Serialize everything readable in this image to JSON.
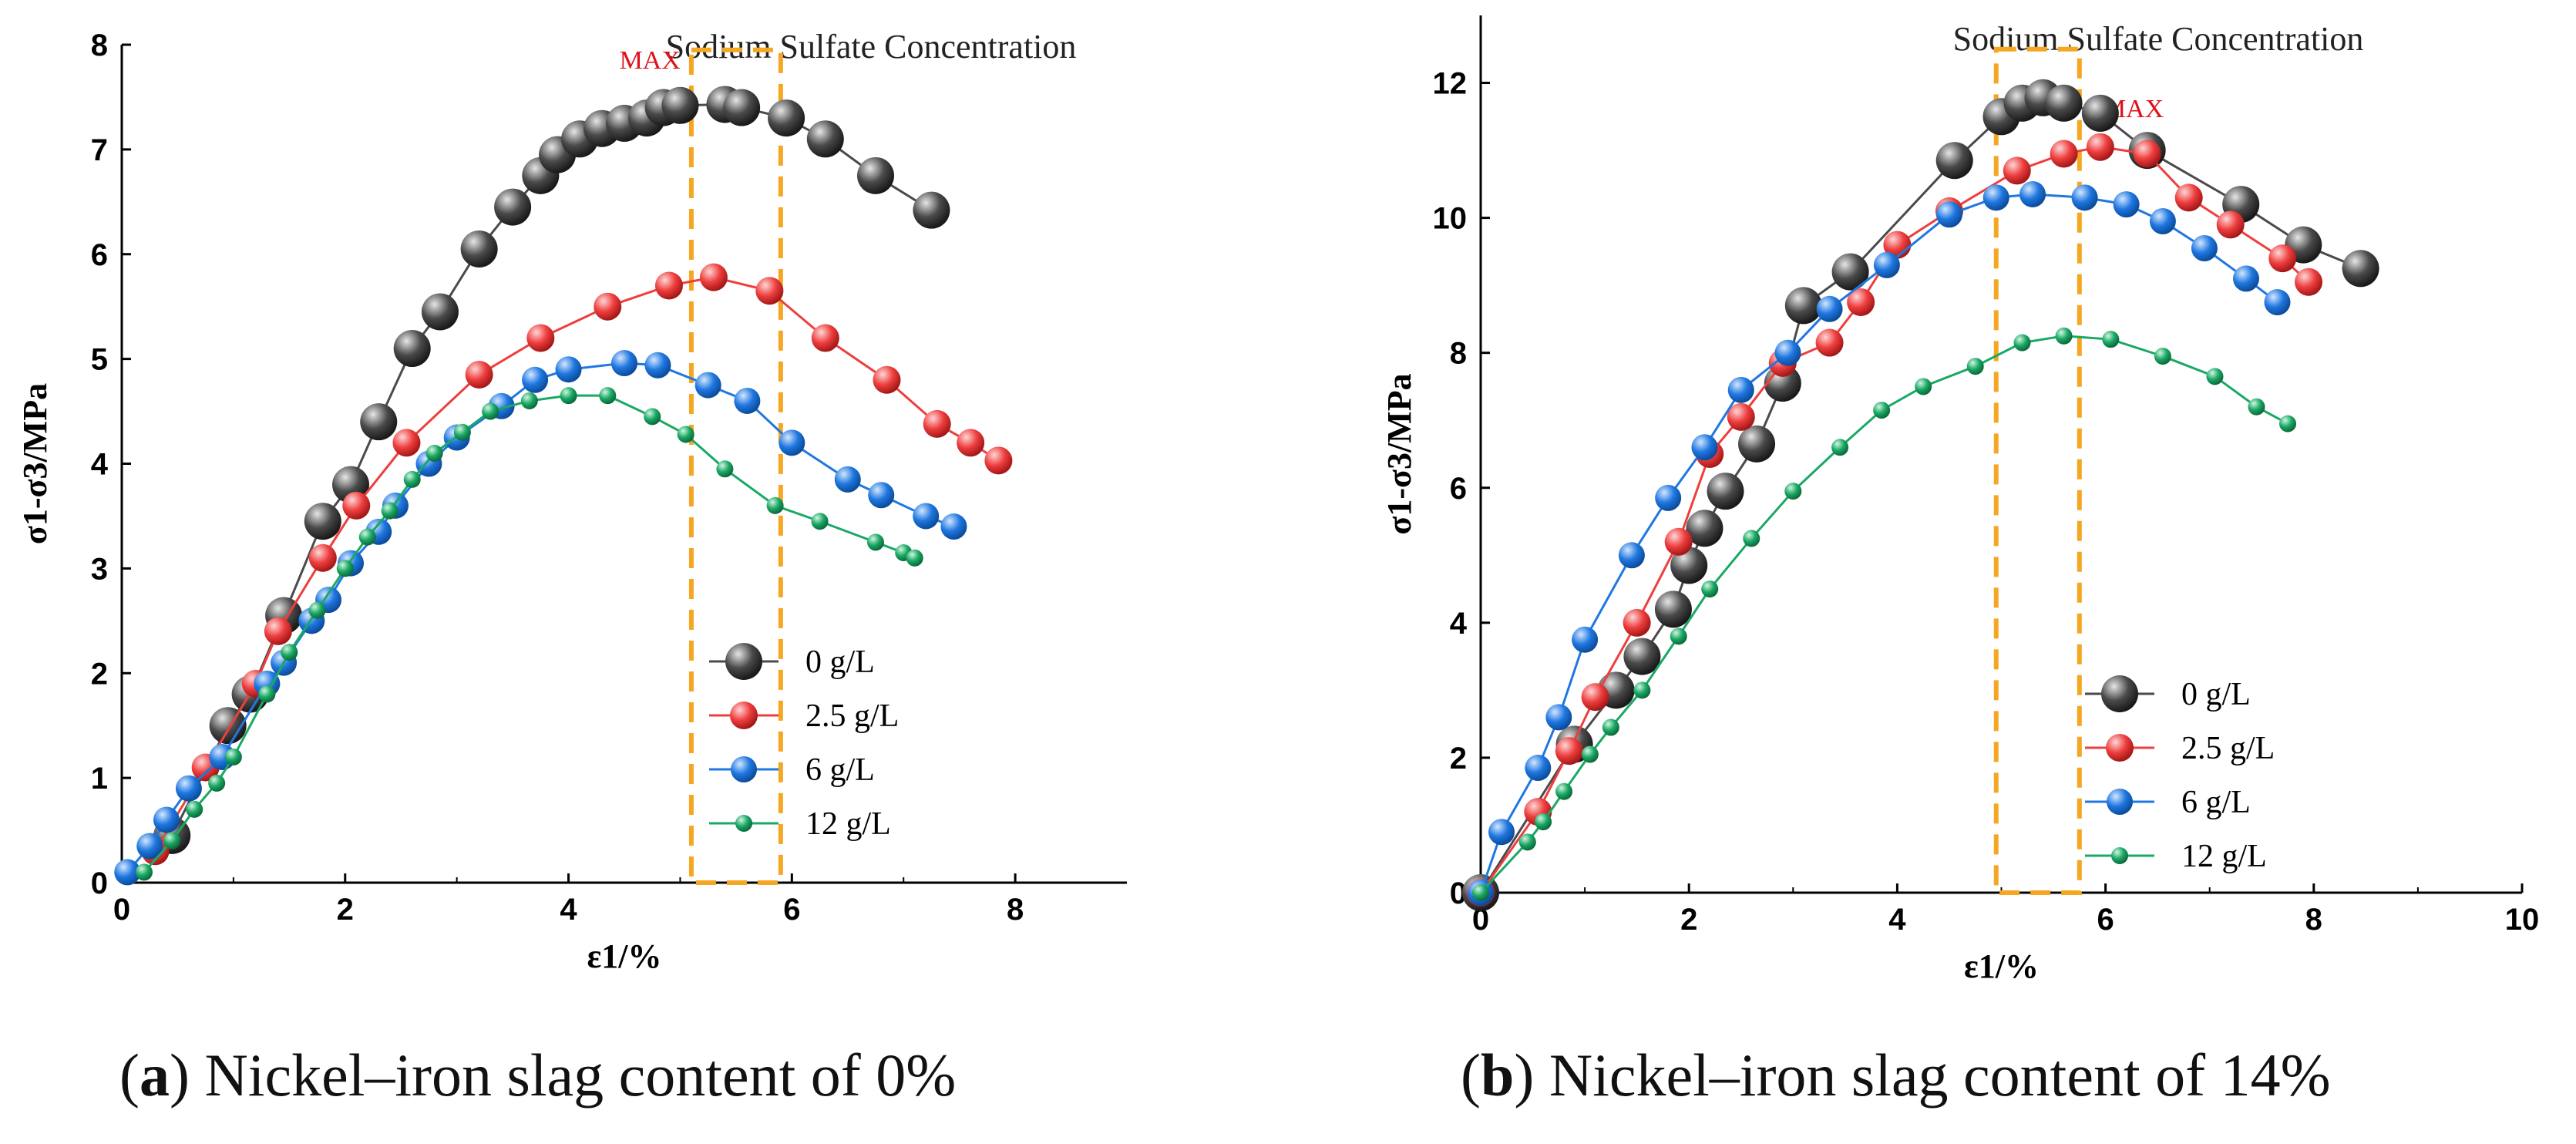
{
  "captions": [
    {
      "tag": "a",
      "text": "Nickel–iron slag content of 0%"
    },
    {
      "tag": "b",
      "text": "Nickel–iron slag content of 14%"
    }
  ],
  "chart_data": [
    {
      "id": "a",
      "type": "line",
      "title": "Sodium Sulfate Concentration",
      "xlabel": "ε1/%",
      "ylabel": "σ1-σ3/MPa",
      "xlim": [
        0,
        9
      ],
      "ylim": [
        0,
        8
      ],
      "xticks": [
        "0",
        "2",
        "4",
        "6",
        "8"
      ],
      "yticks": [
        "0",
        "1",
        "2",
        "3",
        "4",
        "5",
        "6",
        "7",
        "8"
      ],
      "annotation": {
        "text": "MAX",
        "x_range": [
          5.1,
          5.9
        ],
        "y_range": [
          0,
          7.95
        ]
      },
      "legend_position": "lower-right",
      "series": [
        {
          "name": "0 g/L",
          "color": "#4a4a4a",
          "x": [
            0.45,
            0.95,
            1.15,
            1.45,
            1.8,
            2.05,
            2.3,
            2.6,
            2.85,
            3.2,
            3.5,
            3.75,
            3.9,
            4.1,
            4.3,
            4.5,
            4.7,
            4.85,
            5.0,
            5.4,
            5.55,
            5.95,
            6.3,
            6.75,
            7.25
          ],
          "y": [
            0.45,
            1.5,
            1.8,
            2.55,
            3.45,
            3.8,
            4.4,
            5.1,
            5.45,
            6.05,
            6.45,
            6.75,
            6.95,
            7.1,
            7.2,
            7.25,
            7.3,
            7.4,
            7.42,
            7.43,
            7.4,
            7.3,
            7.1,
            6.75,
            6.42
          ]
        },
        {
          "name": "2.5 g/L",
          "color": "#ee3e3e",
          "x": [
            0.3,
            0.75,
            1.2,
            1.4,
            1.8,
            2.1,
            2.55,
            3.2,
            3.75,
            4.35,
            4.9,
            5.3,
            5.8,
            6.3,
            6.85,
            7.3,
            7.6,
            7.85
          ],
          "y": [
            0.3,
            1.1,
            1.9,
            2.4,
            3.1,
            3.6,
            4.2,
            4.85,
            5.2,
            5.5,
            5.7,
            5.78,
            5.65,
            5.2,
            4.8,
            4.38,
            4.2,
            4.03
          ]
        },
        {
          "name": "6 g/L",
          "color": "#1f77e0",
          "x": [
            0.05,
            0.25,
            0.4,
            0.6,
            0.9,
            1.3,
            1.45,
            1.7,
            1.85,
            2.05,
            2.3,
            2.45,
            2.75,
            3.0,
            3.4,
            3.7,
            4.0,
            4.5,
            4.8,
            5.25,
            5.6,
            6.0,
            6.5,
            6.8,
            7.2,
            7.45
          ],
          "y": [
            0.1,
            0.35,
            0.6,
            0.9,
            1.2,
            1.9,
            2.1,
            2.5,
            2.7,
            3.05,
            3.35,
            3.6,
            4.0,
            4.25,
            4.55,
            4.8,
            4.9,
            4.96,
            4.94,
            4.75,
            4.6,
            4.2,
            3.85,
            3.7,
            3.5,
            3.4
          ]
        },
        {
          "name": "12 g/L",
          "color": "#1aa864",
          "x": [
            0.2,
            0.45,
            0.65,
            0.85,
            1.0,
            1.3,
            1.5,
            1.75,
            2.0,
            2.2,
            2.4,
            2.6,
            2.8,
            3.05,
            3.3,
            3.65,
            4.0,
            4.35,
            4.75,
            5.05,
            5.4,
            5.85,
            6.25,
            6.75,
            7.0,
            7.1
          ],
          "y": [
            0.1,
            0.4,
            0.7,
            0.95,
            1.2,
            1.8,
            2.2,
            2.6,
            3.0,
            3.3,
            3.55,
            3.85,
            4.1,
            4.3,
            4.5,
            4.6,
            4.65,
            4.65,
            4.45,
            4.28,
            3.95,
            3.6,
            3.45,
            3.25,
            3.15,
            3.1
          ]
        }
      ],
      "legend_labels": [
        "0 g/L",
        "2.5 g/L",
        "6 g/L",
        "12 g/L"
      ]
    },
    {
      "id": "b",
      "type": "line",
      "title": "Sodium Sulfate Concentration",
      "xlabel": "ε1/%",
      "ylabel": "σ1-σ3/MPa",
      "xlim": [
        0,
        10
      ],
      "ylim": [
        0,
        13
      ],
      "xticks": [
        "0",
        "2",
        "4",
        "6",
        "8",
        "10"
      ],
      "yticks": [
        "0",
        "2",
        "4",
        "6",
        "8",
        "10",
        "12"
      ],
      "annotation": {
        "text": "MAX",
        "x_range": [
          4.95,
          5.75
        ],
        "y_range": [
          0,
          12.5
        ]
      },
      "legend_position": "lower-right",
      "series": [
        {
          "name": "0 g/L",
          "color": "#4a4a4a",
          "x": [
            0,
            0.9,
            1.3,
            1.55,
            1.85,
            2.0,
            2.15,
            2.35,
            2.65,
            2.9,
            3.1,
            3.55,
            4.55,
            5.0,
            5.2,
            5.4,
            5.6,
            5.95,
            6.4,
            7.3,
            7.9,
            8.45
          ],
          "y": [
            0,
            2.2,
            3.0,
            3.5,
            4.2,
            4.85,
            5.4,
            5.95,
            6.65,
            7.55,
            8.7,
            9.2,
            10.85,
            11.5,
            11.7,
            11.78,
            11.7,
            11.55,
            11.0,
            10.2,
            9.6,
            9.25
          ]
        },
        {
          "name": "2.5 g/L",
          "color": "#ee3e3e",
          "x": [
            0,
            0.55,
            0.85,
            1.1,
            1.5,
            1.9,
            2.2,
            2.5,
            2.9,
            3.35,
            3.65,
            4.0,
            4.5,
            5.15,
            5.6,
            5.95,
            6.4,
            6.8,
            7.2,
            7.7,
            7.95
          ],
          "y": [
            0,
            1.2,
            2.1,
            2.9,
            4.0,
            5.2,
            6.5,
            7.05,
            7.85,
            8.15,
            8.75,
            9.6,
            10.1,
            10.7,
            10.95,
            11.05,
            10.95,
            10.3,
            9.9,
            9.4,
            9.05
          ]
        },
        {
          "name": "6 g/L",
          "color": "#1f77e0",
          "x": [
            0,
            0.2,
            0.55,
            0.75,
            1.0,
            1.45,
            1.8,
            2.15,
            2.5,
            2.95,
            3.35,
            3.9,
            4.5,
            4.95,
            5.3,
            5.8,
            6.2,
            6.55,
            6.95,
            7.35,
            7.65
          ],
          "y": [
            0,
            0.9,
            1.85,
            2.6,
            3.75,
            5.0,
            5.85,
            6.6,
            7.45,
            8.0,
            8.65,
            9.3,
            10.05,
            10.3,
            10.35,
            10.3,
            10.2,
            9.95,
            9.55,
            9.1,
            8.75
          ]
        },
        {
          "name": "12 g/L",
          "color": "#1aa864",
          "x": [
            0,
            0.45,
            0.6,
            0.8,
            1.05,
            1.25,
            1.55,
            1.9,
            2.2,
            2.6,
            3.0,
            3.45,
            3.85,
            4.25,
            4.75,
            5.2,
            5.6,
            6.05,
            6.55,
            7.05,
            7.45,
            7.75
          ],
          "y": [
            0,
            0.75,
            1.05,
            1.5,
            2.05,
            2.45,
            3.0,
            3.8,
            4.5,
            5.25,
            5.95,
            6.6,
            7.15,
            7.5,
            7.8,
            8.15,
            8.25,
            8.2,
            7.95,
            7.65,
            7.2,
            6.95
          ]
        }
      ],
      "legend_labels": [
        "0 g/L",
        "2.5 g/L",
        "6 g/L",
        "12 g/L"
      ]
    }
  ]
}
